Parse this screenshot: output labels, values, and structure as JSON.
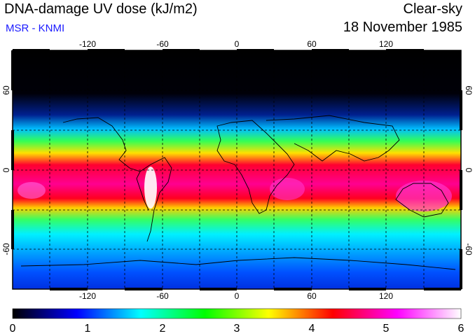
{
  "header": {
    "title": "DNA-damage UV dose (kJ/m2)",
    "source": "MSR - KNMI",
    "condition": "Clear-sky",
    "date": "18 November 1985"
  },
  "colors": {
    "source_text": "#1a1aff"
  },
  "map": {
    "longitude_ticks": [
      "-120",
      "-60",
      "0",
      "60",
      "120"
    ],
    "latitude_ticks": [
      "60",
      "0",
      "-60"
    ]
  },
  "colorbar": {
    "labels": [
      "0",
      "1",
      "2",
      "3",
      "4",
      "5",
      "6"
    ],
    "stops": [
      "#000000",
      "#0000ff",
      "#00ffff",
      "#00ff00",
      "#ffff00",
      "#ff0000",
      "#ff00ff",
      "#ffffff"
    ]
  }
}
